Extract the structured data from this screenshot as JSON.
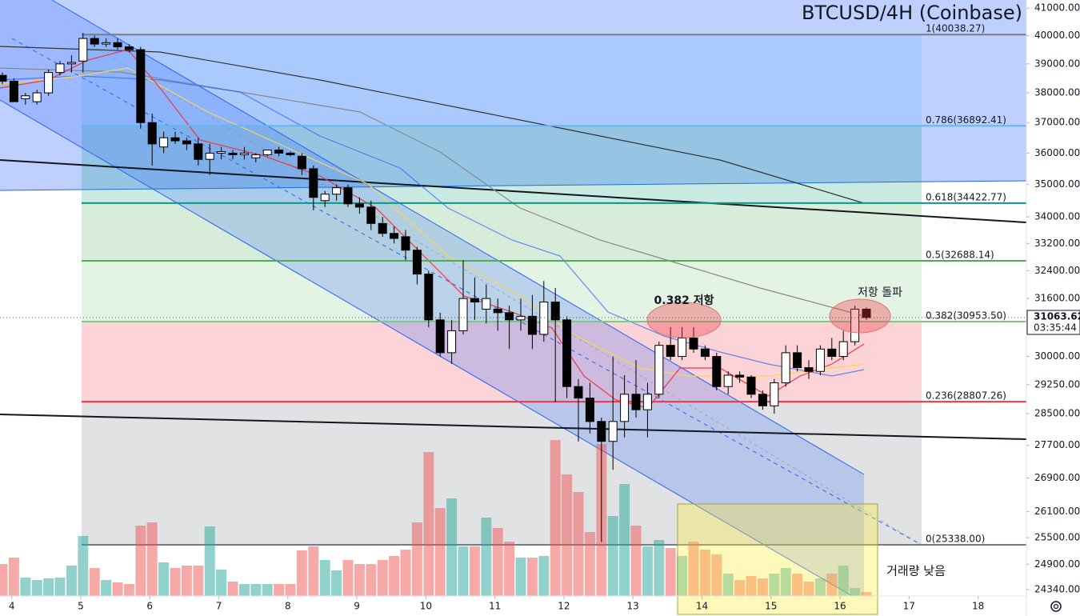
{
  "chart_data": {
    "type": "candlestick",
    "title": "BTCUSD/4H (Coinbase)",
    "log_scale": true,
    "ylim": [
      24200,
      41300
    ],
    "yticks": [
      {
        "value": 41000,
        "label": "41000.00"
      },
      {
        "value": 40000,
        "label": "40000.00"
      },
      {
        "value": 39000,
        "label": "39000.00"
      },
      {
        "value": 38000,
        "label": "38000.00"
      },
      {
        "value": 37000,
        "label": "37000.00"
      },
      {
        "value": 36000,
        "label": "36000.00"
      },
      {
        "value": 35000,
        "label": "35000.00"
      },
      {
        "value": 34000,
        "label": "34000.00"
      },
      {
        "value": 33200,
        "label": "33200.00"
      },
      {
        "value": 32400,
        "label": "32400.00"
      },
      {
        "value": 31600,
        "label": "31600.00"
      },
      {
        "value": 30000,
        "label": "30000.00"
      },
      {
        "value": 29250,
        "label": "29250.00"
      },
      {
        "value": 28500,
        "label": "28500.00"
      },
      {
        "value": 27700,
        "label": "27700.00"
      },
      {
        "value": 26900,
        "label": "26900.00"
      },
      {
        "value": 26100,
        "label": "26100.00"
      },
      {
        "value": 25500,
        "label": "25500.00"
      },
      {
        "value": 24900,
        "label": "24900.00"
      },
      {
        "value": 24340,
        "label": "24340.00"
      }
    ],
    "xlim": [
      3.83,
      18.7
    ],
    "xticks": [
      4,
      5,
      6,
      7,
      8,
      9,
      10,
      11,
      12,
      13,
      14,
      15,
      16,
      17,
      18
    ],
    "colors": {
      "up": "#ffffff",
      "down": "#000000",
      "volume_up": "rgba(38,166,154,0.5)",
      "volume_down": "rgba(239,83,80,0.5)"
    },
    "open": [
      38600,
      38400,
      37800,
      37700,
      38000,
      38700,
      39000,
      39100,
      39900,
      39700,
      39750,
      39600,
      39500,
      37000,
      36200,
      36500,
      36400,
      36300,
      35800,
      36000,
      36000,
      35950,
      35850,
      35950,
      36100,
      36000,
      35900,
      35500,
      34500,
      34700,
      34900,
      34400,
      34300,
      33800,
      33500,
      33400,
      33000,
      32300,
      31000,
      30100,
      30700,
      31600,
      31300,
      31300,
      31200,
      31000,
      31100,
      30600,
      31500,
      31000,
      29200,
      28900,
      28300,
      27800,
      28300,
      29000,
      28600,
      29000,
      30300,
      30000,
      30500,
      30200,
      30000,
      29200,
      29500,
      29450,
      29000,
      28700,
      29300,
      30100,
      29700,
      29600,
      30200,
      30000,
      30400,
      31300
    ],
    "high": [
      38700,
      38500,
      38000,
      38100,
      38800,
      39100,
      39300,
      40100,
      40000,
      39900,
      39900,
      39700,
      39600,
      37300,
      36700,
      36700,
      36500,
      36500,
      36300,
      36200,
      36100,
      36200,
      36000,
      36100,
      36200,
      36050,
      36000,
      35600,
      34800,
      35000,
      35000,
      34600,
      34500,
      34000,
      33700,
      33600,
      33100,
      32400,
      31200,
      31000,
      32700,
      32200,
      32000,
      31600,
      31400,
      31600,
      31700,
      32100,
      31900,
      31100,
      29400,
      29300,
      28400,
      30000,
      29500,
      29900,
      29300,
      30400,
      30800,
      30800,
      30800,
      30300,
      30100,
      29600,
      29600,
      29500,
      29100,
      29400,
      30300,
      30300,
      29900,
      30300,
      30500,
      30700,
      31400,
      31350
    ],
    "low": [
      38300,
      37700,
      37600,
      37600,
      37900,
      38600,
      38700,
      38700,
      39600,
      39600,
      39500,
      39400,
      36800,
      35600,
      36000,
      36300,
      36100,
      35600,
      35300,
      35800,
      35800,
      35800,
      35700,
      35900,
      35900,
      35900,
      35300,
      34200,
      34300,
      34500,
      34300,
      34100,
      33600,
      33400,
      33200,
      32700,
      32000,
      30800,
      30000,
      29800,
      30600,
      31000,
      30900,
      30700,
      30200,
      30700,
      30200,
      30400,
      28800,
      28900,
      27800,
      28000,
      25400,
      27100,
      27900,
      28400,
      27900,
      28900,
      29900,
      29900,
      30100,
      29900,
      29100,
      29000,
      29300,
      28900,
      28600,
      28500,
      29200,
      29600,
      29400,
      29500,
      29900,
      29900,
      30300,
      31000
    ],
    "close": [
      38400,
      37700,
      37900,
      38000,
      38700,
      39000,
      39050,
      39900,
      39700,
      39750,
      39600,
      39500,
      37000,
      36300,
      36500,
      36400,
      36300,
      35800,
      36000,
      36050,
      35950,
      36000,
      35950,
      36100,
      36000,
      35950,
      35500,
      34600,
      34700,
      34900,
      34400,
      34300,
      33800,
      33500,
      33350,
      33000,
      32300,
      31000,
      30100,
      30700,
      31600,
      31500,
      31600,
      31200,
      31000,
      31100,
      30600,
      31500,
      31000,
      29200,
      28900,
      28300,
      27800,
      28300,
      29000,
      28600,
      29000,
      30300,
      30000,
      30500,
      30200,
      30000,
      29200,
      29500,
      29450,
      29000,
      28700,
      29300,
      30100,
      29700,
      29600,
      30200,
      30000,
      30400,
      31300,
      31063.62
    ],
    "volume": [
      40,
      48,
      23,
      20,
      22,
      23,
      38,
      75,
      35,
      20,
      17,
      15,
      88,
      92,
      42,
      35,
      38,
      38,
      87,
      33,
      18,
      15,
      15,
      15,
      15,
      15,
      57,
      62,
      45,
      32,
      45,
      40,
      40,
      45,
      50,
      58,
      92,
      180,
      110,
      122,
      62,
      62,
      98,
      85,
      68,
      48,
      48,
      50,
      195,
      152,
      130,
      80,
      190,
      100,
      140,
      88,
      62,
      70,
      60,
      50,
      68,
      58,
      52,
      28,
      20,
      25,
      22,
      28,
      35,
      28,
      18,
      22,
      28,
      38,
      10,
      5
    ],
    "countdown": "03:35:44",
    "fib_levels": [
      {
        "value": 40038.27,
        "label": "1(40038.27)",
        "color": "#787b86"
      },
      {
        "value": 36892.41,
        "label": "0.786(36892.41)",
        "color": "#64b5f6"
      },
      {
        "value": 34422.77,
        "label": "0.618(34422.77)",
        "color": "#089981"
      },
      {
        "value": 32688.14,
        "label": "0.5(32688.14)",
        "color": "#4caf50"
      },
      {
        "value": 30953.5,
        "label": "0.382(30953.50)",
        "color": "#81c784"
      },
      {
        "value": 28807.26,
        "label": "0.236(28807.26)",
        "color": "#f23645"
      },
      {
        "value": 25338.0,
        "label": "0(25338.00)",
        "color": "#787b86"
      }
    ],
    "annotations": [
      "0.382 저항",
      "저항 돌파",
      "거래량 낮음"
    ]
  }
}
